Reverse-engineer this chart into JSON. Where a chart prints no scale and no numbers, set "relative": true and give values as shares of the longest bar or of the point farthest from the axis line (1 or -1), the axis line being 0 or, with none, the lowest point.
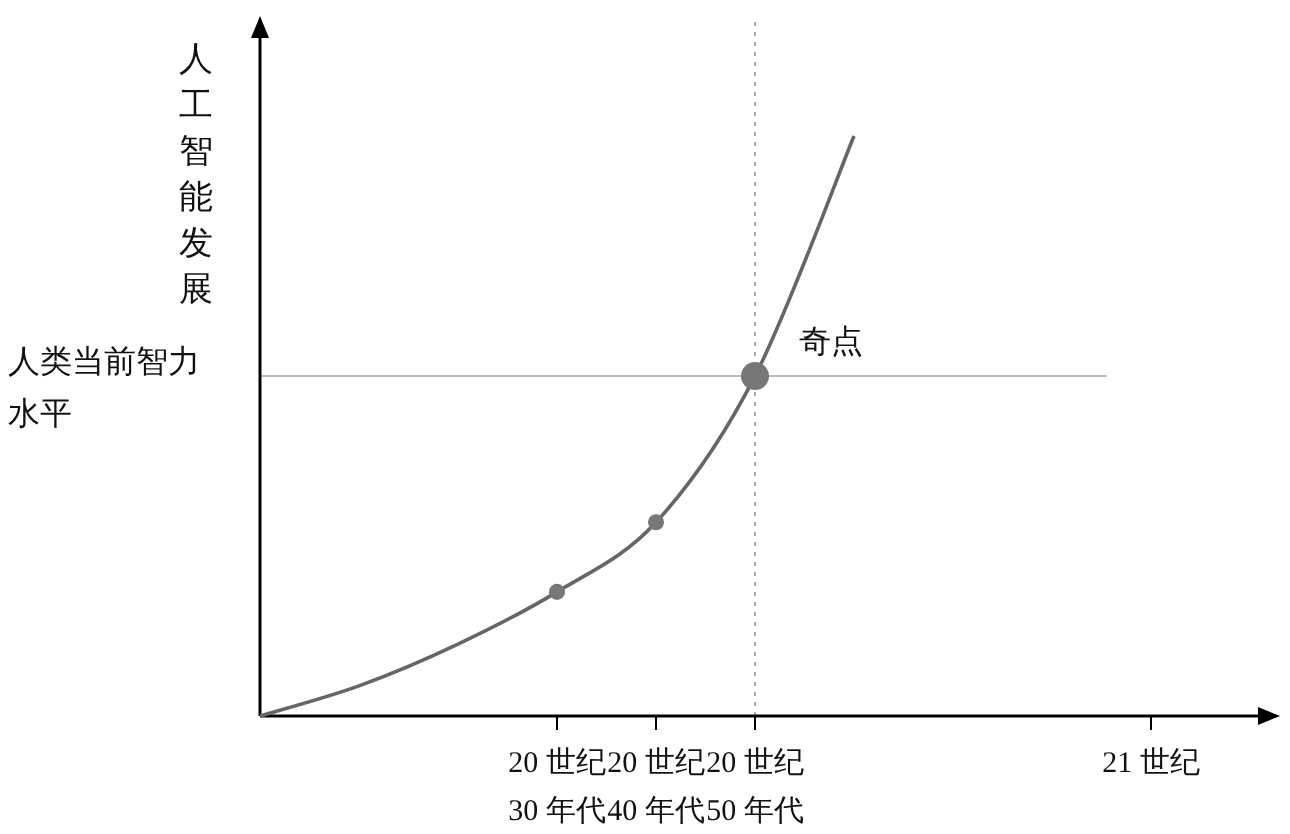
{
  "chart_data": {
    "type": "line",
    "relative": true,
    "ylabel": "人工智能发展",
    "categories": [
      null,
      null,
      null,
      "20 世纪 30 年代",
      "20 世纪 40 年代",
      "20 世纪 50 年代",
      null,
      null,
      null,
      "21 世纪"
    ],
    "series": [
      {
        "color": "#666666",
        "values": [
          0,
          0.052,
          0.124,
          0.214,
          0.334,
          0.586,
          1,
          null,
          null,
          null
        ]
      },
      {
        "type": "bubble",
        "color": "#777777",
        "values": [
          null,
          null,
          null,
          0.214,
          0.334,
          0.586,
          null,
          null,
          null,
          null
        ],
        "sizes": [
          null,
          null,
          null,
          0.33,
          0.33,
          1,
          null,
          null,
          null,
          null
        ]
      }
    ],
    "ref_lines": [
      {
        "axis": "y",
        "value": 0.586,
        "label": "人类当前智力水平",
        "color": "#bbbbbb",
        "line_style": "solid"
      },
      {
        "axis": "x",
        "value": "20 世纪 50 年代",
        "color": "#aaaaaa",
        "line_style": "dotted"
      }
    ],
    "annotations": [
      {
        "text": "奇点",
        "x": "20 世纪 50 年代",
        "y": 0.586
      }
    ],
    "legend": false,
    "grid": false
  }
}
